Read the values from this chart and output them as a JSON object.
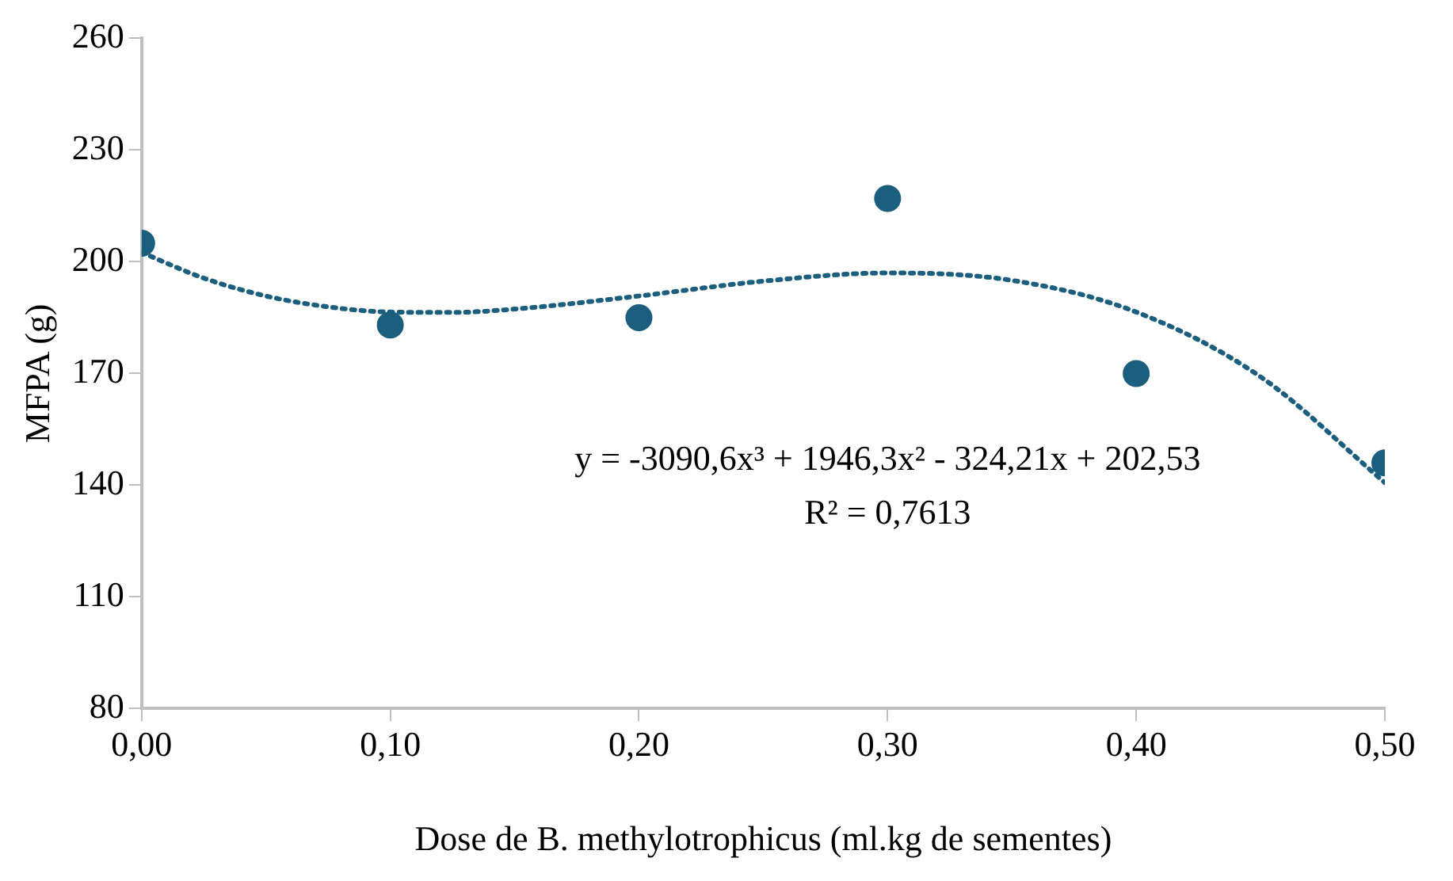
{
  "chart_data": {
    "type": "scatter",
    "xlabel": "Dose de B. methylotrophicus (ml.kg de sementes)",
    "ylabel": "MFPA (g)",
    "x": [
      0,
      0.1,
      0.2,
      0.3,
      0.4,
      0.5
    ],
    "series": [
      {
        "color": "#1b5e7e",
        "marker": "circle",
        "values": [
          205,
          183,
          185,
          217,
          170,
          146
        ]
      },
      {
        "type": "line",
        "color": "#1b5e7e",
        "line_style": "dotted",
        "marker": "none",
        "x": [
          0,
          0.025,
          0.05,
          0.075,
          0.1,
          0.125,
          0.15,
          0.2,
          0.25,
          0.3,
          0.35,
          0.4,
          0.45,
          0.5
        ],
        "values": [
          202.5,
          195.6,
          190.8,
          187.9,
          186.5,
          186.4,
          187.3,
          190.8,
          194.8,
          197.0,
          195.0,
          186.5,
          169.1,
          140.7
        ]
      }
    ],
    "xlim": [
      0,
      0.5
    ],
    "xticks": [
      {
        "value": 0,
        "label": "0,00"
      },
      {
        "value": 0.1,
        "label": "0,10"
      },
      {
        "value": 0.2,
        "label": "0,20"
      },
      {
        "value": 0.3,
        "label": "0,30"
      },
      {
        "value": 0.4,
        "label": "0,40"
      },
      {
        "value": 0.5,
        "label": "0,50"
      }
    ],
    "ylim": [
      80,
      260
    ],
    "yticks": [
      80,
      110,
      140,
      170,
      200,
      230,
      260
    ],
    "grid": false,
    "legend": false,
    "annotations": [
      "y = -3090,6x³ + 1946,3x² - 324,21x + 202,53",
      "R² = 0,7613"
    ]
  }
}
